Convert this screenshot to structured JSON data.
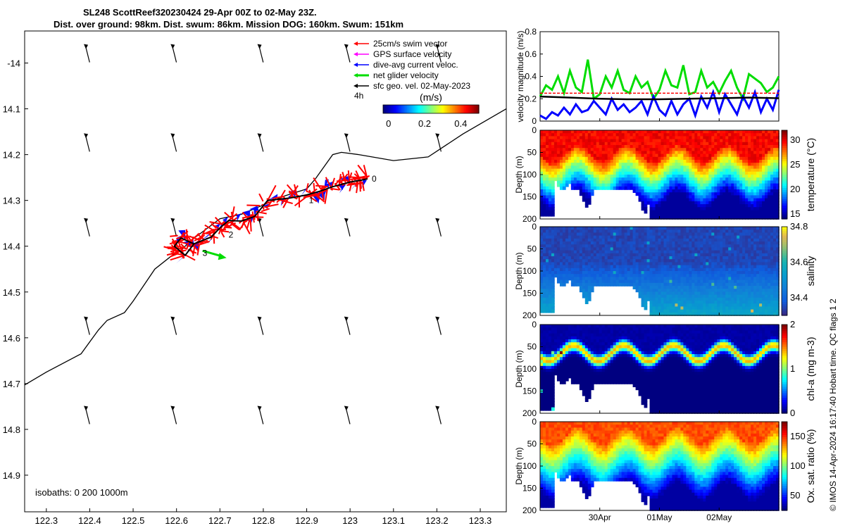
{
  "header": {
    "line1": "SL248 ScottReef320230424 29-Apr 00Z to 02-May 23Z.",
    "line2": "Dist. over ground: 98km. Dist. swum: 86km. Mission DOG: 160km. Swum: 151km"
  },
  "footer_note": "© IMOS 14-Apr-2024 16:17:40 Hobart time. QC flags 1  2",
  "colors": {
    "swim": "#ff0000",
    "gps": "#ff00ff",
    "dive_avg": "#0000ff",
    "net": "#00dd00",
    "sfc_geo": "#000000"
  },
  "chart_data": [
    {
      "id": "map",
      "type": "scatter",
      "title": "",
      "xlabel": "",
      "ylabel": "",
      "xlim": [
        122.25,
        123.36
      ],
      "ylim": [
        -14.98,
        -13.93
      ],
      "x_ticks": [
        "122.3",
        "122.4",
        "122.5",
        "122.6",
        "122.7",
        "122.8",
        "122.9",
        "123",
        "123.1",
        "123.2",
        "123.3"
      ],
      "x_tick_values": [
        122.3,
        122.4,
        122.5,
        122.6,
        122.7,
        122.8,
        122.9,
        123.0,
        123.1,
        123.2,
        123.3
      ],
      "y_ticks": [
        "-14",
        "14.1",
        "14.2",
        "14.3",
        "14.4",
        "14.5",
        "14.6",
        "14.7",
        "14.8",
        "14.9"
      ],
      "y_tick_values": [
        -14.0,
        -14.1,
        -14.2,
        -14.3,
        -14.4,
        -14.5,
        -14.6,
        -14.7,
        -14.8,
        -14.9
      ],
      "legend": {
        "placement": "top-right",
        "entries": [
          "25cm/s swim vector",
          "GPS surface velocity",
          "dive-avg current veloc.",
          "net glider velocity",
          "sfc geo. vel. 02-May-2023"
        ],
        "duration_label": "4h"
      },
      "colorbar": {
        "label": "(m/s)",
        "ticks": [
          "0",
          "0.2",
          "0.4"
        ],
        "range": [
          -0.03,
          0.5
        ]
      },
      "isobaths_label": "isobaths: 0   200  1000m",
      "day_labels": [
        {
          "text": "0",
          "lon": 123.05,
          "lat": -14.253
        },
        {
          "text": "1",
          "lon": 122.905,
          "lat": -14.3
        },
        {
          "text": "2",
          "lon": 122.72,
          "lat": -14.375
        },
        {
          "text": "3",
          "lon": 122.66,
          "lat": -14.415
        }
      ],
      "isobath_line": [
        [
          122.25,
          -14.703
        ],
        [
          122.3,
          -14.675
        ],
        [
          122.38,
          -14.635
        ],
        [
          122.42,
          -14.583
        ],
        [
          122.44,
          -14.562
        ],
        [
          122.48,
          -14.545
        ],
        [
          122.5,
          -14.52
        ],
        [
          122.55,
          -14.45
        ],
        [
          122.59,
          -14.42
        ],
        [
          122.61,
          -14.41
        ],
        [
          122.63,
          -14.39
        ],
        [
          122.7,
          -14.34
        ],
        [
          122.75,
          -14.33
        ],
        [
          122.8,
          -14.31
        ],
        [
          122.85,
          -14.29
        ],
        [
          122.9,
          -14.275
        ],
        [
          122.92,
          -14.253
        ],
        [
          122.96,
          -14.2
        ],
        [
          122.98,
          -14.195
        ],
        [
          123.02,
          -14.2
        ],
        [
          123.1,
          -14.213
        ],
        [
          123.18,
          -14.205
        ],
        [
          123.26,
          -14.155
        ],
        [
          123.36,
          -14.1
        ]
      ],
      "glider_track": [
        [
          122.64,
          -14.395
        ],
        [
          122.62,
          -14.42
        ],
        [
          122.595,
          -14.4
        ],
        [
          122.61,
          -14.382
        ],
        [
          122.64,
          -14.395
        ],
        [
          122.68,
          -14.38
        ],
        [
          122.7,
          -14.36
        ],
        [
          122.72,
          -14.344
        ],
        [
          122.75,
          -14.345
        ],
        [
          122.78,
          -14.335
        ],
        [
          122.81,
          -14.3
        ],
        [
          122.86,
          -14.295
        ],
        [
          122.9,
          -14.288
        ],
        [
          122.93,
          -14.28
        ],
        [
          122.96,
          -14.27
        ],
        [
          123.0,
          -14.26
        ],
        [
          123.03,
          -14.255
        ],
        [
          123.04,
          -14.253
        ]
      ],
      "current_arrows": {
        "lons": [
          122.39,
          122.59,
          122.79,
          122.99,
          123.2
        ],
        "lats": [
          -14.02,
          -14.215,
          -14.4,
          -14.615,
          -14.81
        ],
        "u": -0.05,
        "v": -0.2
      }
    },
    {
      "id": "velocity",
      "type": "line",
      "ylabel": "velocity magnitude (m/s)",
      "ylim": [
        0,
        0.8
      ],
      "y_ticks": [
        "0",
        "0.2",
        "0.4",
        "0.6",
        "0.8"
      ],
      "x_ticks": [
        "30Apr",
        "01May",
        "02May"
      ],
      "x_tick_values": [
        1,
        2,
        3
      ],
      "xlim": [
        0,
        4
      ],
      "series": [
        {
          "key": "net",
          "x": [
            0.0,
            0.1,
            0.2,
            0.3,
            0.4,
            0.5,
            0.6,
            0.7,
            0.8,
            0.9,
            1.0,
            1.1,
            1.2,
            1.3,
            1.4,
            1.5,
            1.6,
            1.7,
            1.8,
            1.9,
            2.0,
            2.1,
            2.2,
            2.3,
            2.4,
            2.5,
            2.6,
            2.7,
            2.8,
            2.9,
            3.0,
            3.1,
            3.2,
            3.3,
            3.4,
            3.5,
            3.6,
            3.7,
            3.8,
            3.9,
            4.0
          ],
          "y": [
            0.22,
            0.32,
            0.28,
            0.4,
            0.25,
            0.45,
            0.3,
            0.26,
            0.55,
            0.2,
            0.24,
            0.4,
            0.3,
            0.45,
            0.28,
            0.25,
            0.4,
            0.3,
            0.35,
            0.2,
            0.28,
            0.45,
            0.32,
            0.3,
            0.5,
            0.24,
            0.26,
            0.45,
            0.3,
            0.35,
            0.25,
            0.36,
            0.45,
            0.3,
            0.2,
            0.42,
            0.38,
            0.34,
            0.26,
            0.3,
            0.4
          ]
        },
        {
          "key": "dive_avg",
          "x": [
            0.0,
            0.1,
            0.2,
            0.3,
            0.4,
            0.5,
            0.6,
            0.7,
            0.8,
            0.9,
            1.0,
            1.1,
            1.2,
            1.3,
            1.4,
            1.5,
            1.6,
            1.7,
            1.8,
            1.9,
            2.0,
            2.1,
            2.2,
            2.3,
            2.4,
            2.5,
            2.6,
            2.7,
            2.8,
            2.9,
            3.0,
            3.1,
            3.2,
            3.3,
            3.4,
            3.5,
            3.6,
            3.7,
            3.8,
            3.9,
            4.0
          ],
          "y": [
            0.05,
            0.02,
            0.08,
            0.05,
            0.12,
            0.06,
            0.15,
            0.08,
            0.1,
            0.18,
            0.12,
            0.06,
            0.2,
            0.1,
            0.15,
            0.08,
            0.12,
            0.18,
            0.06,
            0.22,
            0.1,
            0.05,
            0.18,
            0.06,
            0.15,
            0.2,
            0.05,
            0.22,
            0.12,
            0.26,
            0.08,
            0.24,
            0.15,
            0.06,
            0.22,
            0.12,
            0.26,
            0.08,
            0.2,
            0.1,
            0.28
          ]
        },
        {
          "key": "swim",
          "x": [
            0,
            4
          ],
          "y": [
            0.25,
            0.25
          ]
        },
        {
          "key": "sfc_geo",
          "x": [
            0,
            0.5,
            1.0,
            1.5,
            2.0,
            2.5,
            3.0,
            3.5,
            4.0
          ],
          "y": [
            0.22,
            0.21,
            0.2,
            0.195,
            0.195,
            0.2,
            0.205,
            0.21,
            0.205
          ]
        }
      ]
    },
    {
      "id": "temperature",
      "type": "heatmap",
      "ylabel": "Depth (m)",
      "cbar_label": "temperature (°C)",
      "ylim": [
        0,
        200
      ],
      "y_ticks": [
        "0",
        "50",
        "100",
        "150",
        "200"
      ],
      "cbar_ticks": [
        "15",
        "20",
        "25",
        "30"
      ],
      "crange": [
        14,
        32
      ]
    },
    {
      "id": "salinity",
      "type": "heatmap",
      "ylabel": "Depth (m)",
      "cbar_label": "salinity",
      "ylim": [
        0,
        200
      ],
      "y_ticks": [
        "0",
        "50",
        "100",
        "150",
        "200"
      ],
      "cbar_ticks": [
        "34.4",
        "34.6",
        "34.8"
      ],
      "crange": [
        34.3,
        34.8
      ]
    },
    {
      "id": "chla",
      "type": "heatmap",
      "ylabel": "Depth (m)",
      "cbar_label": "chl-a (mg m-3)",
      "ylim": [
        0,
        200
      ],
      "y_ticks": [
        "0",
        "50",
        "100",
        "150",
        "200"
      ],
      "cbar_ticks": [
        "0",
        "1",
        "2"
      ],
      "crange": [
        0,
        2
      ]
    },
    {
      "id": "oxygen",
      "type": "heatmap",
      "ylabel": "Depth (m)",
      "cbar_label": "Ox. sat. ratio (%)",
      "ylim": [
        0,
        200
      ],
      "y_ticks": [
        "0",
        "50",
        "100",
        "150",
        "200"
      ],
      "cbar_ticks": [
        "50",
        "100",
        "150"
      ],
      "crange": [
        25,
        175
      ],
      "x_ticks": [
        "30Apr",
        "01May",
        "02May"
      ]
    }
  ]
}
